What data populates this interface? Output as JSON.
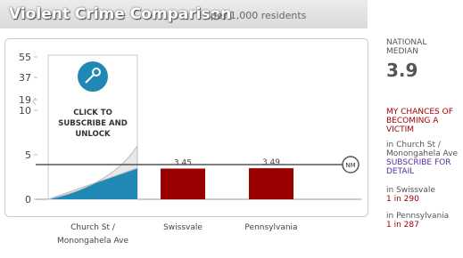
{
  "header": {
    "title": "Violent Crime Comparison",
    "subtitle": "per 1,000 residents"
  },
  "chart_data": {
    "type": "bar",
    "categories": [
      "Church St / Monongahela Ave",
      "Swissvale",
      "Pennsylvania"
    ],
    "values": [
      null,
      3.45,
      3.49
    ],
    "color": "#990000",
    "yticks": [
      0,
      5,
      10,
      19,
      37,
      55
    ],
    "median": 3.9,
    "median_label": "NM",
    "lock_text": "CLICK TO SUBSCRIBE AND UNLOCK"
  },
  "sidebar": {
    "median_title": "NATIONAL MEDIAN",
    "chances_title": "MY CHANCES OF BECOMING A VICTIM",
    "chances": [
      {
        "place": "in Church St / Monongahela Ave",
        "odds": "SUBSCRIBE FOR DETAIL"
      },
      {
        "place": "in Swissvale",
        "odds": "1 in 290"
      },
      {
        "place": "in Pennsylvania",
        "odds": "1 in 287"
      }
    ]
  }
}
